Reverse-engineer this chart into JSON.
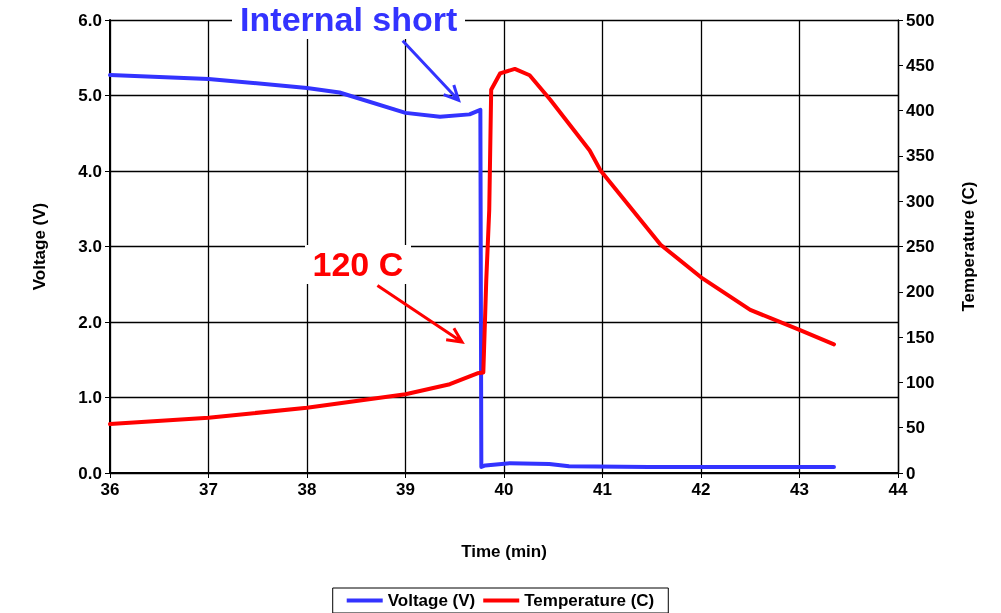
{
  "chart_data": {
    "type": "line",
    "xlabel": "Time (min)",
    "ylabel": "Voltage (V)",
    "y2label": "Temperature (C)",
    "xlim": [
      36,
      44
    ],
    "xticks": [
      36,
      37,
      38,
      39,
      40,
      41,
      42,
      43,
      44
    ],
    "ylim": [
      0,
      6
    ],
    "yticks": [
      {
        "value": 0,
        "label": "0.0"
      },
      {
        "value": 1,
        "label": "1.0"
      },
      {
        "value": 2,
        "label": "2.0"
      },
      {
        "value": 3,
        "label": "3.0"
      },
      {
        "value": 4,
        "label": "4.0"
      },
      {
        "value": 5,
        "label": "5.0"
      },
      {
        "value": 6,
        "label": "6.0"
      }
    ],
    "y2lim": [
      0,
      500
    ],
    "y2ticks": [
      0,
      50,
      100,
      150,
      200,
      250,
      300,
      350,
      400,
      450,
      500
    ],
    "series": [
      {
        "name": "Voltage (V)",
        "color": "#3333ff",
        "x": [
          36,
          37,
          38,
          38.33,
          39,
          39.35,
          39.65,
          39.76,
          39.77,
          39.81,
          40.06,
          40.46,
          40.66,
          41.47,
          43.35
        ],
        "values": [
          5.27,
          5.22,
          5.1,
          5.04,
          4.77,
          4.72,
          4.75,
          4.81,
          0.08,
          0.1,
          0.13,
          0.12,
          0.09,
          0.08,
          0.08
        ]
      },
      {
        "name": "Temperature (C)",
        "color": "#ff0000",
        "axis": "y2",
        "x": [
          36,
          37,
          38,
          39,
          39.45,
          39.73,
          39.79,
          39.82,
          39.85,
          39.87,
          39.96,
          40.11,
          40.26,
          40.47,
          40.87,
          40.98,
          41.59,
          42,
          42.5,
          43,
          43.35
        ],
        "values": [
          54,
          61,
          72,
          87,
          98,
          110,
          111,
          213,
          290,
          423,
          441,
          446,
          439,
          412,
          356,
          334,
          252,
          216,
          180,
          158,
          142
        ]
      }
    ],
    "annotations": [
      {
        "text": "Internal short",
        "x": 39.6,
        "y": 4.83
      },
      "120 C"
    ],
    "grid": true,
    "legend": "bottom",
    "marker": "none",
    "line_style": "solid"
  }
}
